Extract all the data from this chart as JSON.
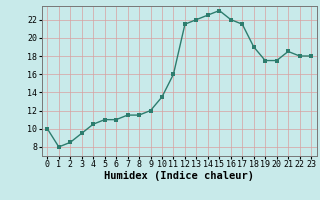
{
  "x": [
    0,
    1,
    2,
    3,
    4,
    5,
    6,
    7,
    8,
    9,
    10,
    11,
    12,
    13,
    14,
    15,
    16,
    17,
    18,
    19,
    20,
    21,
    22,
    23
  ],
  "y": [
    10,
    8,
    8.5,
    9.5,
    10.5,
    11,
    11,
    11.5,
    11.5,
    12,
    13.5,
    16,
    21.5,
    22,
    22.5,
    23,
    22,
    21.5,
    19,
    17.5,
    17.5,
    18.5,
    18,
    18
  ],
  "line_color": "#2d7d6e",
  "marker_color": "#2d7d6e",
  "bg_color": "#c8eaea",
  "grid_color": "#d8a0a0",
  "xlabel": "Humidex (Indice chaleur)",
  "xlim": [
    -0.5,
    23.5
  ],
  "ylim": [
    7,
    23.5
  ],
  "yticks": [
    8,
    10,
    12,
    14,
    16,
    18,
    20,
    22
  ],
  "xticks": [
    0,
    1,
    2,
    3,
    4,
    5,
    6,
    7,
    8,
    9,
    10,
    11,
    12,
    13,
    14,
    15,
    16,
    17,
    18,
    19,
    20,
    21,
    22,
    23
  ],
  "xlabel_fontsize": 7.5,
  "tick_fontsize": 6,
  "line_width": 1.0,
  "marker_size": 2.5
}
